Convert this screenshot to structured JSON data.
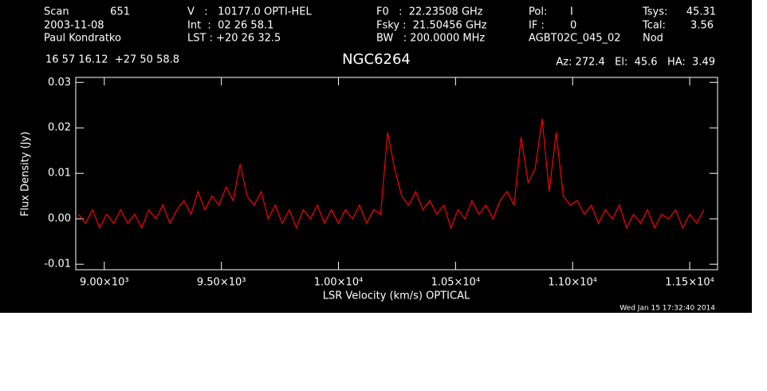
{
  "chart_data": {
    "type": "line",
    "title": "NGC6264",
    "xlabel": "LSR Velocity (km/s) OPTICAL",
    "ylabel": "Flux Density (Jy)",
    "annotations": [
      "Scan",
      "651",
      "2003-11-08",
      "Paul Kondratko",
      "V   :   10177.0 OPTI-HEL",
      "Int  :  02 26 58.1",
      "LST : +20 26 32.5",
      "F0   :  22.23508 GHz",
      "Fsky :  21.50456 GHz",
      "BW   : 200.0000 MHz",
      "Pol:",
      "I",
      "IF :",
      "0",
      "AGBT02C_045_02",
      "Nod",
      "Tsys:",
      "45.31",
      "Tcal:",
      "3.56",
      "16 57 16.12  +27 50 58.8",
      "Az: 272.4   El:  45.6   HA:  3.49",
      "Wed Jan 15 17:32:40 2014"
    ],
    "x": [
      8890,
      8920,
      8950,
      8980,
      9010,
      9040,
      9070,
      9100,
      9130,
      9160,
      9190,
      9220,
      9250,
      9280,
      9310,
      9340,
      9370,
      9400,
      9430,
      9460,
      9490,
      9520,
      9550,
      9580,
      9610,
      9640,
      9670,
      9700,
      9730,
      9760,
      9790,
      9820,
      9850,
      9880,
      9910,
      9940,
      9970,
      10000,
      10030,
      10060,
      10090,
      10120,
      10150,
      10180,
      10210,
      10240,
      10270,
      10300,
      10330,
      10360,
      10390,
      10420,
      10450,
      10480,
      10510,
      10540,
      10570,
      10600,
      10630,
      10660,
      10690,
      10720,
      10750,
      10780,
      10810,
      10840,
      10870,
      10900,
      10930,
      10960,
      10990,
      11020,
      11050,
      11080,
      11110,
      11140,
      11170,
      11200,
      11230,
      11260,
      11290,
      11320,
      11350,
      11380,
      11410,
      11440,
      11470,
      11500,
      11530,
      11560
    ],
    "series": [
      {
        "name": "NGC6264",
        "color": "#ff0000",
        "values": [
          0.001,
          -0.001,
          0.002,
          -0.002,
          0.001,
          -0.001,
          0.002,
          -0.001,
          0.001,
          -0.002,
          0.002,
          0.0,
          0.003,
          -0.001,
          0.002,
          0.004,
          0.001,
          0.006,
          0.002,
          0.005,
          0.003,
          0.007,
          0.004,
          0.012,
          0.005,
          0.003,
          0.006,
          0.0,
          0.003,
          -0.001,
          0.002,
          -0.002,
          0.002,
          0.0,
          0.003,
          -0.001,
          0.002,
          -0.001,
          0.002,
          0.0,
          0.003,
          -0.001,
          0.002,
          0.001,
          0.019,
          0.011,
          0.005,
          0.003,
          0.006,
          0.002,
          0.004,
          0.001,
          0.003,
          -0.002,
          0.002,
          0.0,
          0.004,
          0.001,
          0.003,
          0.0,
          0.004,
          0.006,
          0.003,
          0.018,
          0.008,
          0.011,
          0.022,
          0.006,
          0.019,
          0.005,
          0.003,
          0.004,
          0.001,
          0.003,
          -0.001,
          0.002,
          0.0,
          0.003,
          -0.002,
          0.001,
          -0.001,
          0.002,
          -0.002,
          0.001,
          0.0,
          0.002,
          -0.002,
          0.001,
          -0.001,
          0.002
        ]
      }
    ],
    "xlim": [
      8878,
      11619
    ],
    "ylim": [
      -0.0112,
      0.0311
    ],
    "xticks": [
      {
        "value": 9000,
        "label": "9.00×10³"
      },
      {
        "value": 9500,
        "label": "9.50×10³"
      },
      {
        "value": 10000,
        "label": "1.00×10⁴"
      },
      {
        "value": 10500,
        "label": "1.05×10⁴"
      },
      {
        "value": 11000,
        "label": "1.10×10⁴"
      },
      {
        "value": 11500,
        "label": "1.15×10⁴"
      }
    ],
    "yticks": [
      -0.01,
      {
        "value": 0,
        "label": "0.00"
      },
      0.01,
      0.02,
      0.03
    ]
  }
}
